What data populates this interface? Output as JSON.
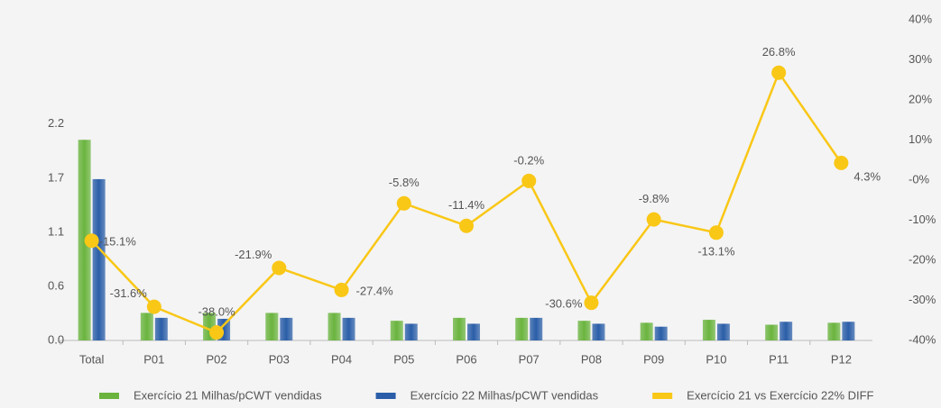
{
  "chart_data": {
    "type": "bar-line",
    "categories": [
      "Total",
      "P01",
      "P02",
      "P03",
      "P04",
      "P05",
      "P06",
      "P07",
      "P08",
      "P09",
      "P10",
      "P11",
      "P12"
    ],
    "series": [
      {
        "name": "Exercício 21 Milhas/pCWT vendidas",
        "color": "#6ab43e",
        "values": [
          2.04,
          0.28,
          0.28,
          0.28,
          0.28,
          0.2,
          0.23,
          0.23,
          0.2,
          0.18,
          0.21,
          0.16,
          0.18
        ]
      },
      {
        "name": "Exercício 22 Milhas/pCWT vendidas",
        "color": "#2a5ea8",
        "values": [
          1.64,
          0.23,
          0.22,
          0.23,
          0.23,
          0.17,
          0.17,
          0.23,
          0.17,
          0.14,
          0.17,
          0.19,
          0.19
        ]
      },
      {
        "name": "Exercício 21 vs Exercício 22% DIFF",
        "color": "#f9c716",
        "axis": "y2",
        "type": "line",
        "values": [
          -15.1,
          -31.6,
          -38.0,
          -21.9,
          -27.4,
          -5.8,
          -11.4,
          -0.2,
          -30.6,
          -9.8,
          -13.1,
          26.8,
          4.3
        ],
        "value_labels": [
          "-15.1%",
          "-31.6%",
          "-38.0%",
          "-21.9%",
          "-27.4%",
          "-5.8%",
          "-11.4%",
          "-0.2%",
          "-30.6%",
          "-9.8%",
          "-13.1%",
          "26.8%",
          "4.3%"
        ]
      }
    ],
    "ylim": [
      0,
      3.26
    ],
    "yticks": [
      {
        "value": 0,
        "label": "0.0"
      },
      {
        "value": 0.55,
        "label": "0.6"
      },
      1.1,
      {
        "value": 1.65,
        "label": "1.7"
      },
      2.2
    ],
    "y2lim": [
      -40,
      40
    ],
    "y2ticks": [
      {
        "value": -40,
        "label": "-40%"
      },
      {
        "value": -30,
        "label": "-30%"
      },
      {
        "value": -20,
        "label": "-20%"
      },
      {
        "value": -10,
        "label": "-10%"
      },
      {
        "value": 0,
        "label": "-0%"
      },
      {
        "value": 10,
        "label": "10%"
      },
      {
        "value": 20,
        "label": "20%"
      },
      {
        "value": 30,
        "label": "30%"
      },
      {
        "value": 40,
        "label": "40%"
      }
    ],
    "legend": "bottom"
  }
}
